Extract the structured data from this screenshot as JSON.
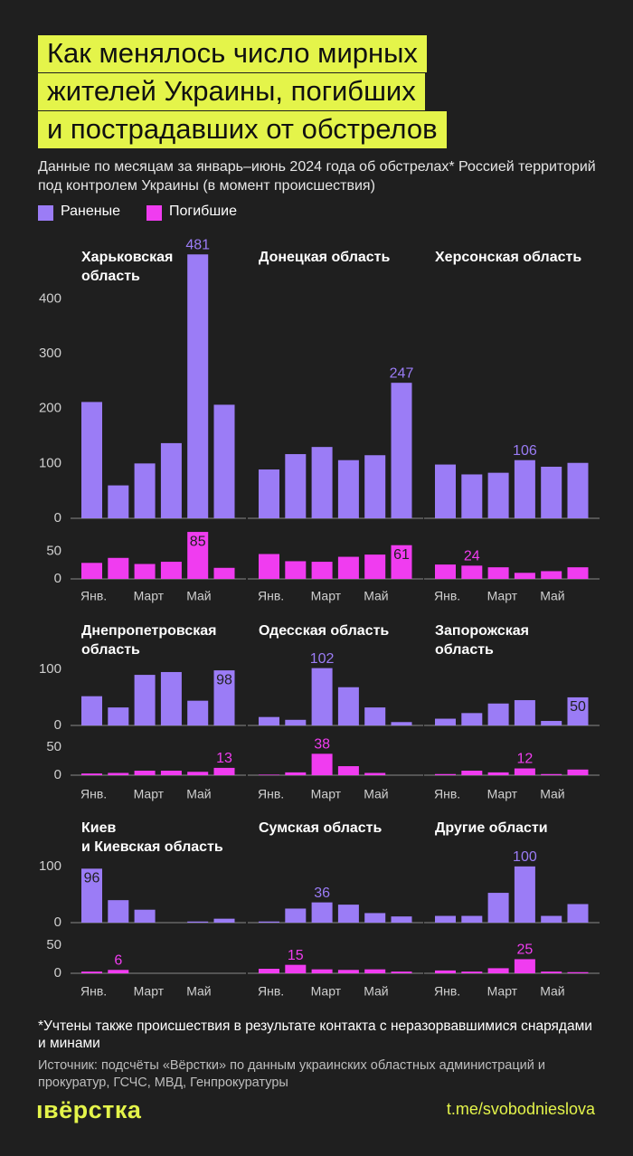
{
  "title": "Как менялось число мирных\nжителей Украины, погибших\nи пострадавших от обстрелов",
  "subtitle": "Данные по месяцам за январь–июнь 2024 года об обстрелах* Россией территорий под контролем Украины (в момент происшествия)",
  "footnote": "*Учтены также происшествия в результате контакта с неразорвавшимися снарядами и минами",
  "source": "Источник: подсчёты «Вёрстки» по данным украинских областных администраций и прокуратур, ГСЧС, МВД, Генпрокуратуры",
  "logo": "ıвёрстка",
  "link": "t.me/svobodnieslova",
  "chart_data": [
    {
      "type": "bar",
      "title": "Харьковская\nобласть",
      "categories": [
        "Янв.",
        null,
        "Март",
        null,
        "Май",
        null
      ],
      "series": [
        {
          "name": "Раненые",
          "color": "#9b7cf6",
          "values": [
            212,
            60,
            100,
            137,
            481,
            207
          ],
          "ylim": [
            0,
            488
          ],
          "yticks": [
            0,
            100,
            200,
            300,
            400
          ],
          "label_index": 4,
          "label_inside": false
        },
        {
          "name": "Погибшие",
          "color": "#f03cf0",
          "values": [
            29,
            38,
            27,
            31,
            85,
            20
          ],
          "ylim": [
            0,
            90
          ],
          "yticks": [
            0,
            50
          ],
          "label_index": 4,
          "label_inside": true
        }
      ]
    },
    {
      "type": "bar",
      "title": "Донецкая область",
      "categories": [
        "Янв.",
        null,
        "Март",
        null,
        "Май",
        null
      ],
      "series": [
        {
          "name": "Раненые",
          "color": "#9b7cf6",
          "values": [
            89,
            117,
            130,
            106,
            115,
            247
          ],
          "ylim": [
            0,
            488
          ],
          "label_index": 5,
          "label_inside": false
        },
        {
          "name": "Погибшие",
          "color": "#f03cf0",
          "values": [
            45,
            32,
            31,
            40,
            44,
            61
          ],
          "ylim": [
            0,
            90
          ],
          "label_index": 5,
          "label_inside": true
        }
      ]
    },
    {
      "type": "bar",
      "title": "Херсонская область",
      "categories": [
        "Янв.",
        null,
        "Март",
        null,
        "Май",
        null
      ],
      "series": [
        {
          "name": "Раненые",
          "color": "#9b7cf6",
          "values": [
            98,
            80,
            83,
            106,
            94,
            101
          ],
          "ylim": [
            0,
            488
          ],
          "label_index": 3,
          "label_inside": false
        },
        {
          "name": "Погибшие",
          "color": "#f03cf0",
          "values": [
            26,
            24,
            21,
            11,
            14,
            21
          ],
          "ylim": [
            0,
            90
          ],
          "label_index": 1,
          "label_inside": false
        }
      ]
    },
    {
      "type": "bar",
      "title": "Днепропетровская\nобласть",
      "categories": [
        "Янв.",
        null,
        "Март",
        null,
        "Май",
        null
      ],
      "series": [
        {
          "name": "Раненые",
          "color": "#9b7cf6",
          "values": [
            52,
            32,
            90,
            95,
            44,
            98
          ],
          "ylim": [
            0,
            103
          ],
          "yticks": [
            0,
            100
          ],
          "label_index": 5,
          "label_inside": true
        },
        {
          "name": "Погибшие",
          "color": "#f03cf0",
          "values": [
            3,
            4,
            8,
            8,
            6,
            13
          ],
          "ylim": [
            0,
            61
          ],
          "yticks": [
            0,
            50
          ],
          "label_index": 5,
          "label_inside": false
        }
      ]
    },
    {
      "type": "bar",
      "title": "Одесская область",
      "categories": [
        "Янв.",
        null,
        "Март",
        null,
        "Май",
        null
      ],
      "series": [
        {
          "name": "Раненые",
          "color": "#9b7cf6",
          "values": [
            15,
            10,
            102,
            68,
            32,
            6
          ],
          "ylim": [
            0,
            103
          ],
          "label_index": 2,
          "label_inside": false
        },
        {
          "name": "Погибшие",
          "color": "#f03cf0",
          "values": [
            1,
            5,
            38,
            16,
            4,
            0
          ],
          "ylim": [
            0,
            61
          ],
          "label_index": 2,
          "label_inside": false
        }
      ]
    },
    {
      "type": "bar",
      "title": "Запорожская\nобласть",
      "categories": [
        "Янв.",
        null,
        "Март",
        null,
        "Май",
        null
      ],
      "series": [
        {
          "name": "Раненые",
          "color": "#9b7cf6",
          "values": [
            12,
            22,
            39,
            45,
            8,
            50
          ],
          "ylim": [
            0,
            103
          ],
          "label_index": 5,
          "label_inside": true
        },
        {
          "name": "Погибшие",
          "color": "#f03cf0",
          "values": [
            2,
            8,
            5,
            12,
            2,
            10
          ],
          "ylim": [
            0,
            61
          ],
          "label_index": 3,
          "label_inside": false
        }
      ]
    },
    {
      "type": "bar",
      "title": "Киев\nи Киевская область",
      "categories": [
        "Янв.",
        null,
        "Март",
        null,
        "Май",
        null
      ],
      "series": [
        {
          "name": "Раненые",
          "color": "#9b7cf6",
          "values": [
            96,
            40,
            23,
            0,
            2,
            7
          ],
          "ylim": [
            0,
            103
          ],
          "yticks": [
            0,
            100
          ],
          "label_index": 0,
          "label_inside": true
        },
        {
          "name": "Погибшие",
          "color": "#f03cf0",
          "values": [
            3,
            6,
            0,
            0,
            0,
            0
          ],
          "ylim": [
            0,
            61
          ],
          "yticks": [
            0,
            50
          ],
          "label_index": 1,
          "label_inside": false
        }
      ]
    },
    {
      "type": "bar",
      "title": "Сумская область",
      "categories": [
        "Янв.",
        null,
        "Март",
        null,
        "Май",
        null
      ],
      "series": [
        {
          "name": "Раненые",
          "color": "#9b7cf6",
          "values": [
            2,
            25,
            36,
            32,
            17,
            11
          ],
          "ylim": [
            0,
            103
          ],
          "label_index": 2,
          "label_inside": false
        },
        {
          "name": "Погибшие",
          "color": "#f03cf0",
          "values": [
            8,
            15,
            7,
            6,
            7,
            3
          ],
          "ylim": [
            0,
            61
          ],
          "label_index": 1,
          "label_inside": false
        }
      ]
    },
    {
      "type": "bar",
      "title": "Другие области",
      "categories": [
        "Янв.",
        null,
        "Март",
        null,
        "Май",
        null
      ],
      "series": [
        {
          "name": "Раненые",
          "color": "#9b7cf6",
          "values": [
            12,
            12,
            53,
            100,
            12,
            33
          ],
          "ylim": [
            0,
            103
          ],
          "label_index": 3,
          "label_inside": false
        },
        {
          "name": "Погибшие",
          "color": "#f03cf0",
          "values": [
            5,
            3,
            9,
            25,
            3,
            2
          ],
          "ylim": [
            0,
            61
          ],
          "label_index": 3,
          "label_inside": false
        }
      ]
    }
  ]
}
